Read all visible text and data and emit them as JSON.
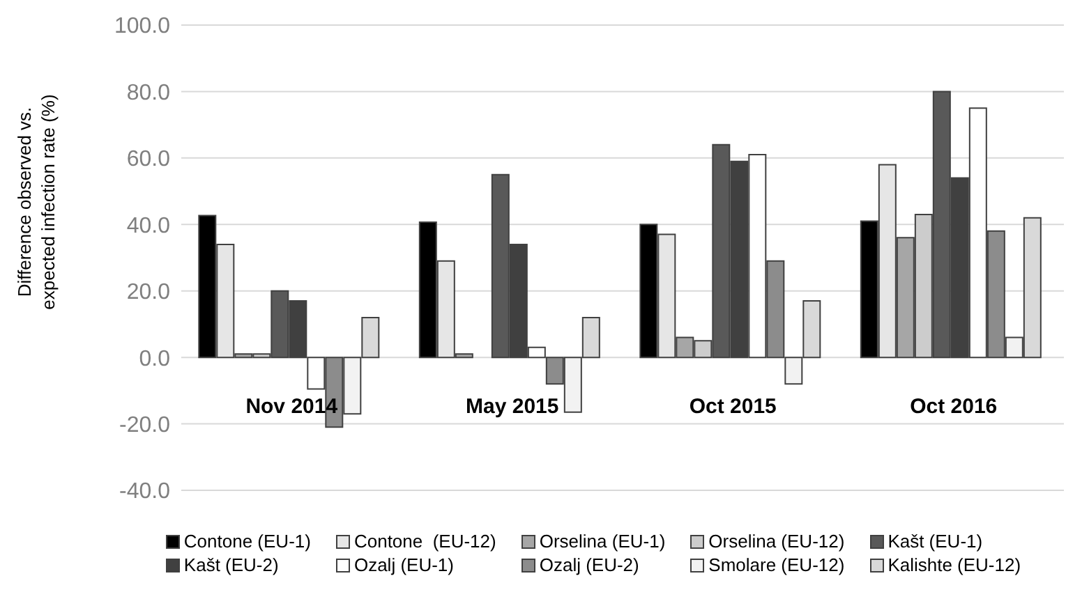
{
  "chart_data": {
    "type": "bar",
    "ylabel": "Difference observed vs. expected infection rate (%)",
    "categories": [
      "Nov 2014",
      "May 2015",
      "Oct 2015",
      "Oct 2016"
    ],
    "series": [
      {
        "name": "Contone (EU-1)",
        "color": "#000000",
        "values": [
          42.7,
          40.7,
          40,
          41
        ]
      },
      {
        "name": "Contone  (EU-12)",
        "color": "#e6e6e6",
        "values": [
          34,
          29,
          37,
          58
        ]
      },
      {
        "name": "Orselina (EU-1)",
        "color": "#a6a6a6",
        "values": [
          1,
          1,
          6,
          36
        ]
      },
      {
        "name": "Orselina (EU-12)",
        "color": "#cccccc",
        "values": [
          1,
          null,
          5,
          43
        ]
      },
      {
        "name": "Kašt (EU-1)",
        "color": "#595959",
        "values": [
          20,
          55,
          64,
          80
        ]
      },
      {
        "name": "Kašt (EU-2)",
        "color": "#404040",
        "values": [
          17,
          34,
          59,
          54
        ]
      },
      {
        "name": "Ozalj (EU-1)",
        "color": "#ffffff",
        "values": [
          -9.5,
          3,
          61,
          75
        ]
      },
      {
        "name": "Ozalj (EU-2)",
        "color": "#8c8c8c",
        "values": [
          -21,
          -8,
          29,
          38
        ]
      },
      {
        "name": "Smolare (EU-12)",
        "color": "#f2f2f2",
        "values": [
          -17,
          -16.5,
          -8,
          6
        ]
      },
      {
        "name": "Kalishte (EU-12)",
        "color": "#d9d9d9",
        "values": [
          12,
          12,
          17,
          42
        ]
      }
    ],
    "ylim": [
      -40,
      100
    ],
    "yticks": [
      {
        "value": -40,
        "label": "-40.0"
      },
      {
        "value": -20,
        "label": "-20.0"
      },
      {
        "value": 0,
        "label": "0.0"
      },
      {
        "value": 20,
        "label": "20.0"
      },
      {
        "value": 40,
        "label": "40.0"
      },
      {
        "value": 60,
        "label": "60.0"
      },
      {
        "value": 80,
        "label": "80.0"
      },
      {
        "value": 100,
        "label": "100.0"
      }
    ],
    "grid": "y",
    "legend": "bottom"
  }
}
